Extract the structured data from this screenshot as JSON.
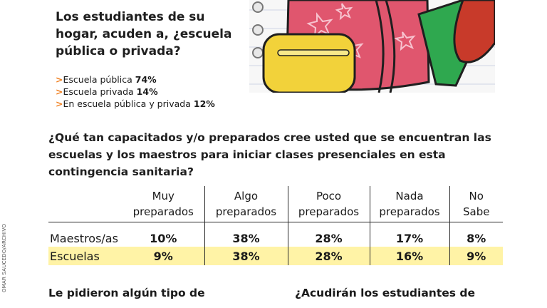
{
  "credit": "OMAR SAUCEDO/ARCHIVO",
  "question1": {
    "title": "Los estudiantes de su hogar, acuden a, ¿escuela pública o privada?",
    "answers": [
      {
        "label": "Escuela pública",
        "value": "74%"
      },
      {
        "label": "Escuela privada",
        "value": "14%"
      },
      {
        "label": "En escuela pública y privada",
        "value": "12%"
      }
    ]
  },
  "question2": {
    "title": "¿Qué tan capacitados y/o preparados cree usted que se encuentran las escuelas y los maestros para iniciar clases presenciales en esta contingencia sanitaria?",
    "columns": [
      [
        "Muy",
        "preparados"
      ],
      [
        "Algo",
        "preparados"
      ],
      [
        "Poco",
        "preparados"
      ],
      [
        "Nada",
        "preparados"
      ],
      [
        "No",
        "Sabe"
      ]
    ],
    "rows": [
      {
        "label": "Maestros/as",
        "values": [
          "10%",
          "38%",
          "28%",
          "17%",
          "8%"
        ]
      },
      {
        "label": "Escuelas",
        "values": [
          "9%",
          "38%",
          "28%",
          "16%",
          "9%"
        ]
      }
    ]
  },
  "question3": {
    "title": "Le pidieron algún tipo de"
  },
  "question4": {
    "title": "¿Acudirán los estudiantes de"
  },
  "colors": {
    "arrow": "#f08020",
    "highlight_row": "#fff3a6",
    "backpack": "#e0566e",
    "pocket": "#f2d23a",
    "green": "#2fa84f"
  }
}
